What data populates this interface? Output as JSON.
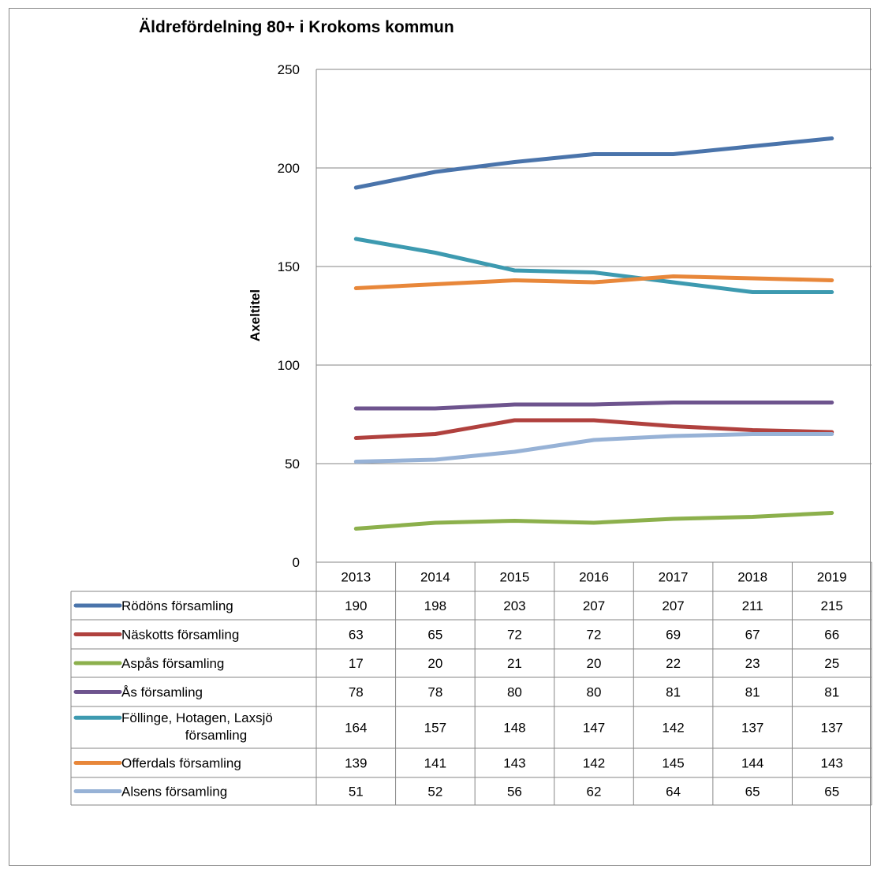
{
  "chart_data": {
    "type": "line",
    "title": "Äldrefördelning 80+ i Krokoms kommun",
    "ylabel": "Axeltitel",
    "xlabel": "",
    "ylim": [
      0,
      250
    ],
    "yticks": [
      0,
      50,
      100,
      150,
      200,
      250
    ],
    "categories": [
      "2013",
      "2014",
      "2015",
      "2016",
      "2017",
      "2018",
      "2019"
    ],
    "grid": true,
    "legend": "data-table",
    "series": [
      {
        "name": "Rödöns församling",
        "color": "#4a74ab",
        "values": [
          190,
          198,
          203,
          207,
          207,
          211,
          215
        ]
      },
      {
        "name": "Näskotts församling",
        "color": "#b0413e",
        "values": [
          63,
          65,
          72,
          72,
          69,
          67,
          66
        ]
      },
      {
        "name": "Aspås församling",
        "color": "#8cb04c",
        "values": [
          17,
          20,
          21,
          20,
          22,
          23,
          25
        ]
      },
      {
        "name": "Ås församling",
        "color": "#6e548e",
        "values": [
          78,
          78,
          80,
          80,
          81,
          81,
          81
        ]
      },
      {
        "name": "Föllinge, Hotagen, Laxsjö församling",
        "label_lines": [
          "Föllinge, Hotagen, Laxsjö",
          "församling"
        ],
        "color": "#3d9ab0",
        "values": [
          164,
          157,
          148,
          147,
          142,
          137,
          137
        ]
      },
      {
        "name": "Offerdals församling",
        "color": "#e8873a",
        "values": [
          139,
          141,
          143,
          142,
          145,
          144,
          143
        ]
      },
      {
        "name": "Alsens församling",
        "color": "#97b2d6",
        "values": [
          51,
          52,
          56,
          62,
          64,
          65,
          65
        ]
      }
    ]
  }
}
